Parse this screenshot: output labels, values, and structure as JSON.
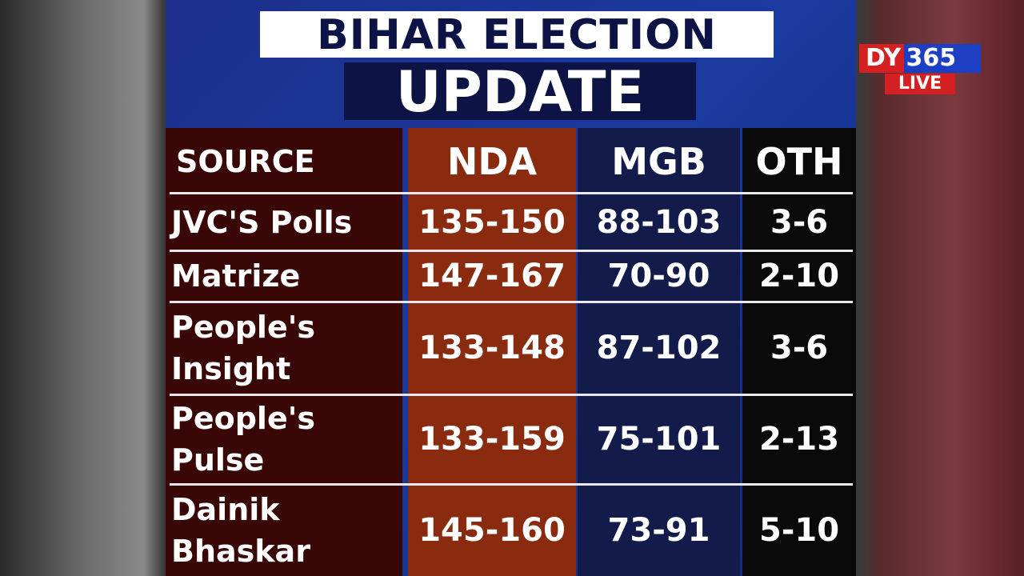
{
  "title": {
    "line1": "BIHAR ELECTION",
    "line2": "UPDATE"
  },
  "logo": {
    "part1": "DY",
    "part2": "365",
    "live": "LIVE",
    "colors": {
      "red": "#d42020",
      "blue": "#1d3fc4"
    }
  },
  "table": {
    "headers": [
      "SOURCE",
      "NDA",
      "MGB",
      "OTH"
    ],
    "rows": [
      {
        "source": "JVC'S Polls",
        "nda": "135-150",
        "mgb": "88-103",
        "oth": "3-6"
      },
      {
        "source": "Matrize",
        "nda": "147-167",
        "mgb": "70-90",
        "oth": "2-10"
      },
      {
        "source": "People's Insight",
        "nda": "133-148",
        "mgb": "87-102",
        "oth": "3-6"
      },
      {
        "source": "People's Pulse",
        "nda": "133-159",
        "mgb": "75-101",
        "oth": "2-13"
      },
      {
        "source": "Dainik Bhaskar",
        "nda": "145-160",
        "mgb": "73-91",
        "oth": "5-10"
      }
    ],
    "colors": {
      "source": "#3a0707",
      "nda": "#8a2a0e",
      "mgb": "#121b4a",
      "oth": "#0a0a0a"
    }
  }
}
